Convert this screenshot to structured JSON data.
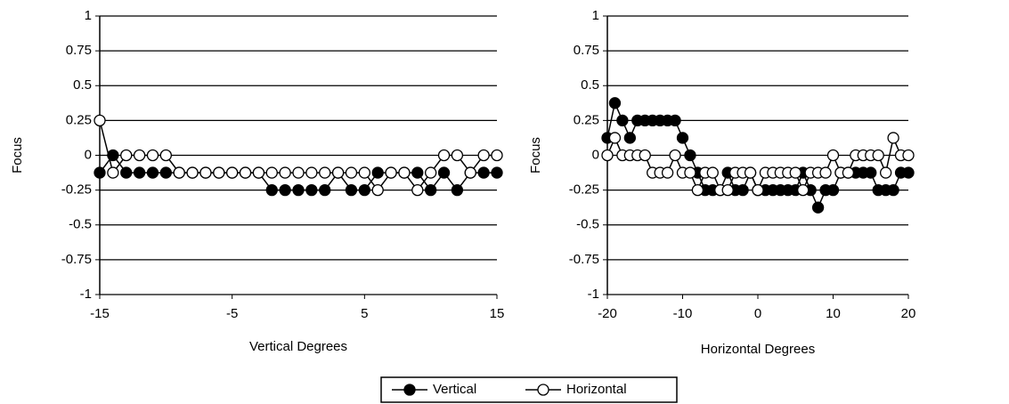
{
  "chart_data": [
    {
      "type": "line",
      "x_label": "Vertical Degrees",
      "y_label": "Focus",
      "x": [
        -15,
        -14,
        -13,
        -12,
        -11,
        -10,
        -9,
        -8,
        -7,
        -6,
        -5,
        -4,
        -3,
        -2,
        -1,
        0,
        1,
        2,
        3,
        4,
        5,
        6,
        7,
        8,
        9,
        10,
        11,
        12,
        13,
        14,
        15
      ],
      "xlim": [
        -15,
        15
      ],
      "xticks": [
        -15,
        -5,
        5,
        15
      ],
      "ylim": [
        -1,
        1
      ],
      "yticks": [
        -1,
        -0.75,
        -0.5,
        -0.25,
        0,
        0.25,
        0.5,
        0.75,
        1
      ],
      "grid": true,
      "series": [
        {
          "name": "Vertical",
          "color": "#000000",
          "values": [
            -0.125,
            0,
            -0.125,
            -0.125,
            -0.125,
            -0.125,
            -0.125,
            -0.125,
            -0.125,
            -0.125,
            -0.125,
            -0.125,
            -0.125,
            -0.25,
            -0.25,
            -0.25,
            -0.25,
            -0.25,
            -0.125,
            -0.25,
            -0.25,
            -0.125,
            -0.125,
            -0.125,
            -0.125,
            -0.25,
            -0.125,
            -0.25,
            -0.125,
            -0.125,
            -0.125
          ]
        },
        {
          "name": "Horizontal",
          "color": "#ffffff",
          "values": [
            0.25,
            -0.125,
            0,
            0,
            0,
            0,
            -0.125,
            -0.125,
            -0.125,
            -0.125,
            -0.125,
            -0.125,
            -0.125,
            -0.125,
            -0.125,
            -0.125,
            -0.125,
            -0.125,
            -0.125,
            -0.125,
            -0.125,
            -0.25,
            -0.125,
            -0.125,
            -0.25,
            -0.125,
            0,
            0,
            -0.125,
            0,
            0
          ]
        }
      ]
    },
    {
      "type": "line",
      "x_label": "Horizontal Degrees",
      "y_label": "Focus",
      "x": [
        -20,
        -19,
        -18,
        -17,
        -16,
        -15,
        -14,
        -13,
        -12,
        -11,
        -10,
        -9,
        -8,
        -7,
        -6,
        -5,
        -4,
        -3,
        -2,
        -1,
        0,
        1,
        2,
        3,
        4,
        5,
        6,
        7,
        8,
        9,
        10,
        11,
        12,
        13,
        14,
        15,
        16,
        17,
        18,
        19,
        20
      ],
      "xlim": [
        -20,
        20
      ],
      "xticks": [
        -20,
        -10,
        0,
        10,
        20
      ],
      "ylim": [
        -1,
        1
      ],
      "yticks": [
        -1,
        -0.75,
        -0.5,
        -0.25,
        0,
        0.25,
        0.5,
        0.75,
        1
      ],
      "grid": true,
      "series": [
        {
          "name": "Vertical",
          "color": "#000000",
          "values": [
            0.125,
            0.375,
            0.25,
            0.125,
            0.25,
            0.25,
            0.25,
            0.25,
            0.25,
            0.25,
            0.125,
            0,
            -0.125,
            -0.25,
            -0.25,
            -0.25,
            -0.125,
            -0.25,
            -0.25,
            -0.125,
            -0.25,
            -0.25,
            -0.25,
            -0.25,
            -0.25,
            -0.25,
            -0.125,
            -0.25,
            -0.375,
            -0.25,
            -0.25,
            -0.125,
            -0.125,
            -0.125,
            -0.125,
            -0.125,
            -0.25,
            -0.25,
            -0.25,
            -0.125,
            -0.125
          ]
        },
        {
          "name": "Horizontal",
          "color": "#ffffff",
          "values": [
            0,
            0.125,
            0,
            0,
            0,
            0,
            -0.125,
            -0.125,
            -0.125,
            0,
            -0.125,
            -0.125,
            -0.25,
            -0.125,
            -0.125,
            -0.25,
            -0.25,
            -0.125,
            -0.125,
            -0.125,
            -0.25,
            -0.125,
            -0.125,
            -0.125,
            -0.125,
            -0.125,
            -0.25,
            -0.125,
            -0.125,
            -0.125,
            0,
            -0.125,
            -0.125,
            0,
            0,
            0,
            0,
            -0.125,
            0.125,
            0,
            0
          ]
        }
      ]
    }
  ]
}
